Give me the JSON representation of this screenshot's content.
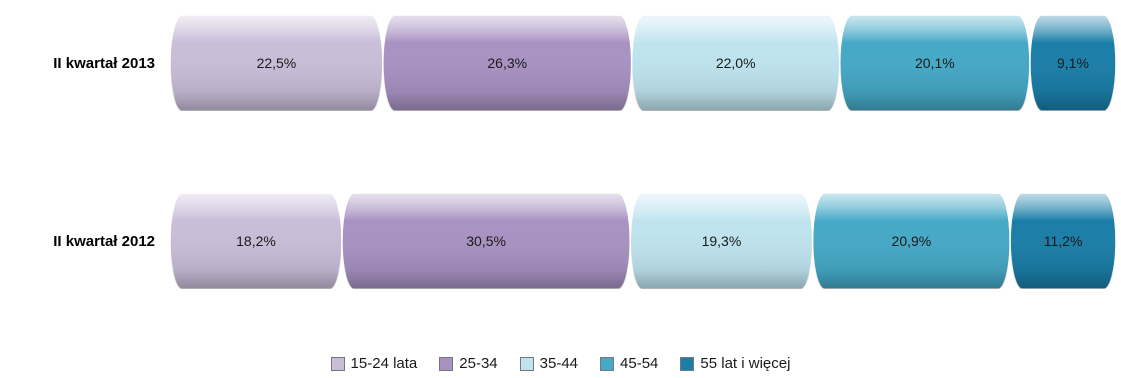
{
  "chart_data": {
    "type": "bar",
    "orientation": "horizontal",
    "stacked": true,
    "percent": true,
    "categories": [
      "II kwartał 2013",
      "II kwartał 2012"
    ],
    "series": [
      {
        "name": "15-24 lata",
        "values": [
          22.5,
          18.2
        ],
        "labels": [
          "22,5%",
          "18,2%"
        ],
        "color": "#c9bdd8"
      },
      {
        "name": "25-34",
        "values": [
          26.3,
          30.5
        ],
        "labels": [
          "26,3%",
          "30,5%"
        ],
        "color": "#a892c2"
      },
      {
        "name": "35-44",
        "values": [
          22.0,
          19.3
        ],
        "labels": [
          "22,0%",
          "19,3%"
        ],
        "color": "#bfe4ef"
      },
      {
        "name": "45-54",
        "values": [
          20.1,
          20.9
        ],
        "labels": [
          "20,1%",
          "20,9%"
        ],
        "color": "#45a9c7"
      },
      {
        "name": "55 lat i więcej",
        "values": [
          9.1,
          11.2
        ],
        "labels": [
          "9,1%",
          "11,2%"
        ],
        "color": "#1a7ea8"
      }
    ],
    "legend_position": "bottom",
    "grid": false
  }
}
